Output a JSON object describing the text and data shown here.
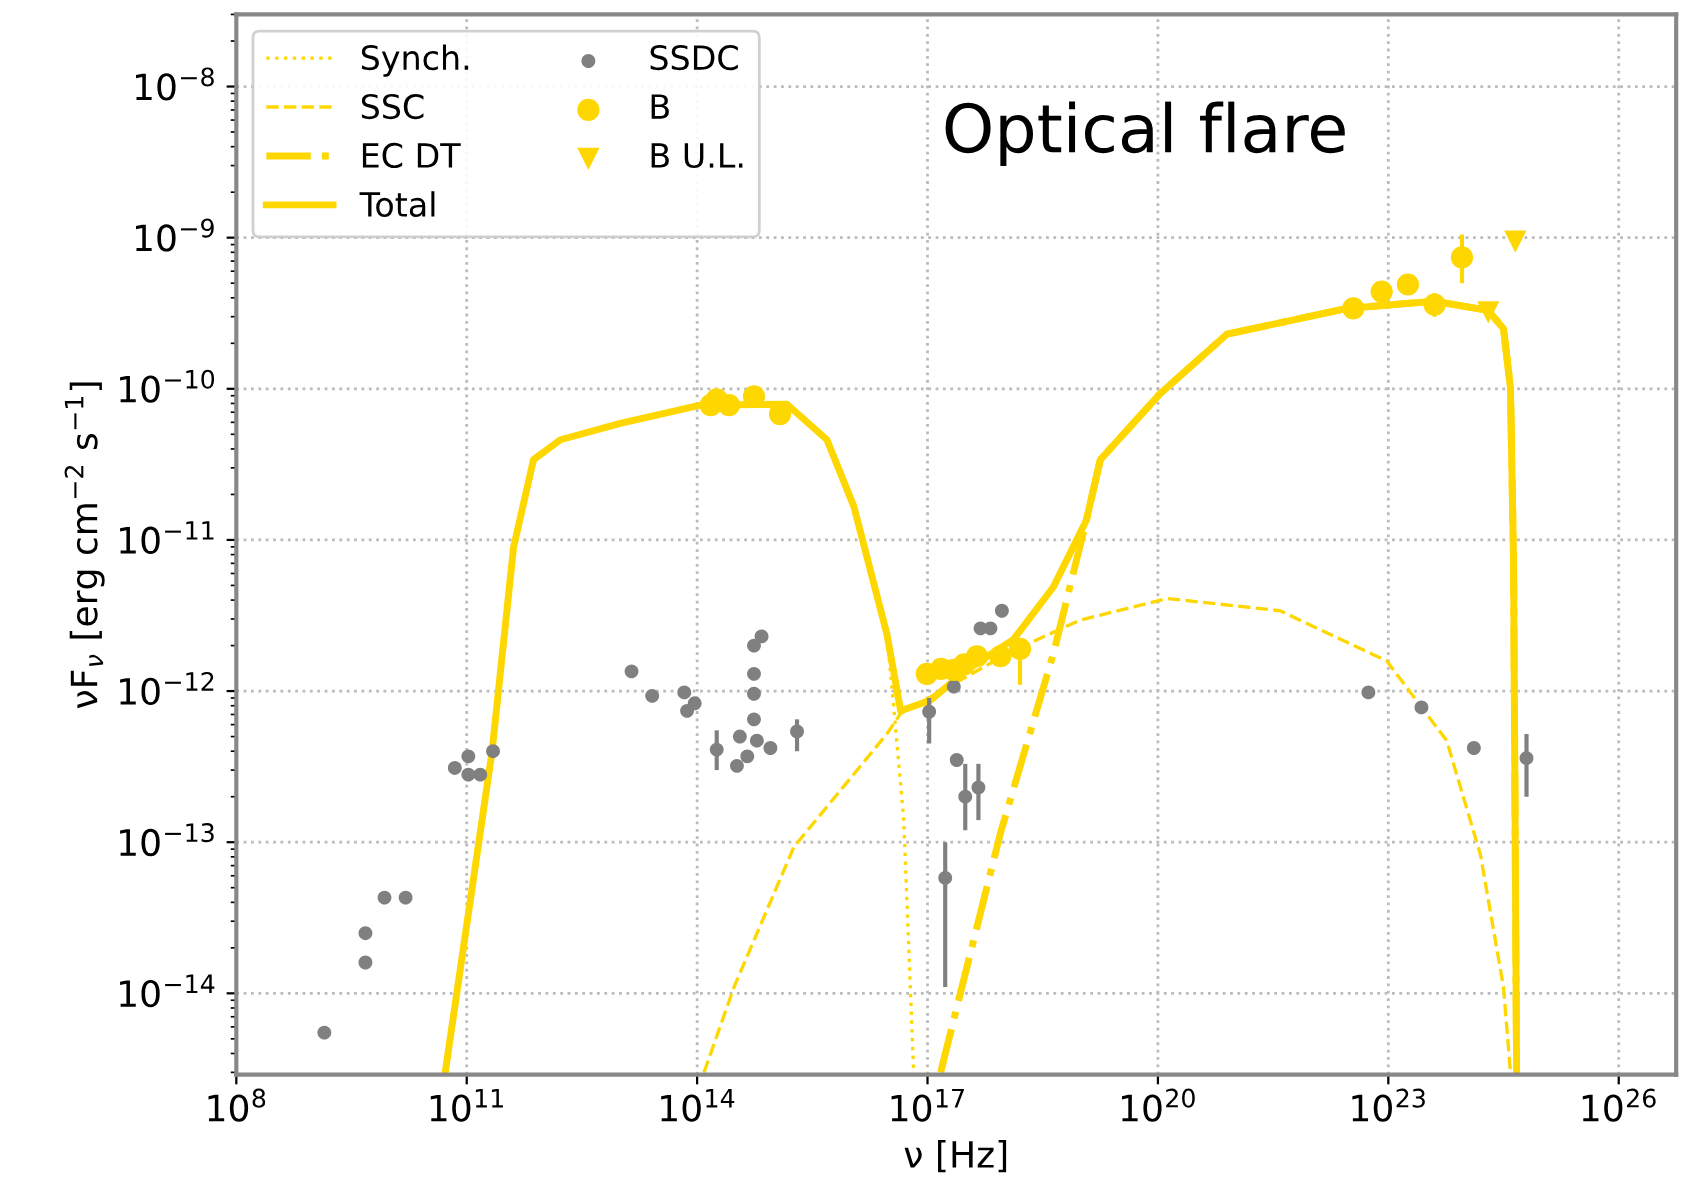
{
  "chart_data": {
    "type": "line",
    "title": null,
    "annotations": [
      "Optical flare"
    ],
    "xlabel": "ν [Hz]",
    "ylabel": "νF$_{ν}$ [erg cm$^{−2}$ s$^{−1}$]",
    "log": "xy",
    "grid": true,
    "legend": "top left",
    "xlim": [
      100000000.0,
      5.6e+26
    ],
    "ylim": [
      2.9e-15,
      3e-08
    ],
    "xticks": [
      {
        "value": 100000000.0,
        "label": "10$^{8}$"
      },
      {
        "value": 100000000000.0,
        "label": "10$^{11}$"
      },
      {
        "value": 100000000000000.0,
        "label": "10$^{14}$"
      },
      {
        "value": 1e+17,
        "label": "10$^{17}$"
      },
      {
        "value": 1e+20,
        "label": "10$^{20}$"
      },
      {
        "value": 1e+23,
        "label": "10$^{23}$"
      },
      {
        "value": 1e+26,
        "label": "10$^{26}$"
      }
    ],
    "yticks": [
      {
        "value": 1e-14,
        "label": "10$^{−14}$"
      },
      {
        "value": 1e-13,
        "label": "10$^{−13}$"
      },
      {
        "value": 1e-12,
        "label": "10$^{−12}$"
      },
      {
        "value": 1e-11,
        "label": "10$^{−11}$"
      },
      {
        "value": 1e-10,
        "label": "10$^{−10}$"
      },
      {
        "value": 1e-09,
        "label": "10$^{−9}$"
      },
      {
        "value": 1e-08,
        "label": "10$^{−8}$"
      }
    ],
    "series": [
      {
        "name": "Synch.",
        "line_style": "dotted",
        "color": "#ffd700",
        "x": [
          52500000000.0,
          214000000000.0,
          407000000000.0,
          741000000000.0,
          1660000000000.0,
          10000000000000.0,
          110000000000000.0,
          1480000000000000.0,
          4900000000000000.0,
          1.1e+16,
          2.95e+16,
          3.63e+16,
          4.9e+16,
          6.6e+16
        ],
        "values": [
          3e-15,
          4e-13,
          8.9e-12,
          3.4e-11,
          4.6e-11,
          5.9e-11,
          7.8e-11,
          7.9e-11,
          4.6e-11,
          1.66e-11,
          2.4e-12,
          7.9e-13,
          1.41e-13,
          3e-15
        ]
      },
      {
        "name": "SSC",
        "line_style": "dashed",
        "color": "#ffd700",
        "x": [
          123000000000000.0,
          302000000000000.0,
          1820000000000000.0,
          2.95e+16,
          4.47e+16,
          1.32e+18,
          9.77e+18,
          1.32e+20,
          3.89e+21,
          9.55e+22,
          5.75e+23,
          1.58e+24,
          3.16e+24,
          3.89e+24
        ],
        "values": [
          3e-15,
          1.1e-14,
          9.3e-14,
          5.2e-13,
          7.1e-13,
          1.86e-12,
          2.95e-12,
          4.1e-12,
          3.4e-12,
          1.58e-12,
          4.7e-13,
          8.3e-14,
          1.1e-14,
          3e-15
        ]
      },
      {
        "name": "EC DT",
        "line_style": "dashdot",
        "color": "#ffd700",
        "x": [
          1.48e+17,
          8.91e+17,
          4.37e+18,
          1.17e+19,
          1.78e+19,
          1.07e+20,
          7.94e+20,
          2.88e+22,
          3.89e+23,
          2e+24,
          3.16e+24,
          3.89e+24,
          4.27e+24,
          4.68e+24
        ],
        "values": [
          3e-15,
          1.15e-13,
          1.78e-12,
          1.35e-11,
          3.4e-11,
          9.3e-11,
          2.3e-10,
          3.4e-10,
          3.8e-10,
          3.3e-10,
          2.5e-10,
          1.02e-10,
          7.4e-12,
          3e-15
        ]
      },
      {
        "name": "Total",
        "line_style": "solid",
        "color": "#ffd700",
        "x": [
          52500000000.0,
          214000000000.0,
          407000000000.0,
          741000000000.0,
          1660000000000.0,
          10000000000000.0,
          110000000000000.0,
          1480000000000000.0,
          4900000000000000.0,
          1.1e+16,
          2.95e+16,
          4.47e+16,
          1.1e+17,
          3.24e+17,
          1.32e+18,
          4.37e+18,
          1.17e+19,
          1.78e+19,
          1.07e+20,
          7.94e+20,
          2.88e+22,
          3.89e+23,
          2e+24,
          3.16e+24,
          3.89e+24,
          4.27e+24,
          4.68e+24
        ],
        "values": [
          3e-15,
          4e-13,
          8.9e-12,
          3.4e-11,
          4.6e-11,
          5.9e-11,
          7.8e-11,
          7.9e-11,
          4.6e-11,
          1.66e-11,
          2.4e-12,
          7.4e-13,
          8.7e-13,
          1.38e-12,
          2.2e-12,
          4.9e-12,
          1.35e-11,
          3.4e-11,
          9.3e-11,
          2.3e-10,
          3.4e-10,
          3.8e-10,
          3.3e-10,
          2.5e-10,
          1.02e-10,
          7.4e-12,
          3e-15
        ]
      },
      {
        "name": "SSDC",
        "type": "scatter",
        "marker": "circle",
        "color": "#808080",
        "x": [
          1400000000.0,
          4800000000.0,
          4800000000.0,
          8500000000.0,
          16000000000.0,
          70000000000.0,
          105000000000.0,
          105000000000.0,
          150000000000.0,
          220000000000.0,
          14000000000000.0,
          26000000000000.0,
          68000000000000.0,
          74000000000000.0,
          93000000000000.0,
          180000000000000.0,
          330000000000000.0,
          360000000000000.0,
          450000000000000.0,
          550000000000000.0,
          550000000000000.0,
          550000000000000.0,
          550000000000000.0,
          690000000000000.0,
          600000000000000.0,
          900000000000000.0,
          2000000000000000.0,
          1.05e+17,
          1.7e+17,
          2.2e+17,
          2.4e+17,
          3.1e+17,
          4.6e+17,
          4.9e+17,
          6.6e+17,
          9.3e+17,
          5.5e+22,
          2.7e+23,
          1.3e+24,
          6.3e+24
        ],
        "values": [
          5.5e-15,
          2.5e-14,
          1.6e-14,
          4.3e-14,
          4.3e-14,
          3.1e-13,
          3.7e-13,
          2.8e-13,
          2.8e-13,
          4e-13,
          1.35e-12,
          9.3e-13,
          9.8e-13,
          7.4e-13,
          8.3e-13,
          4.1e-13,
          3.2e-13,
          5e-13,
          3.7e-13,
          6.5e-13,
          9.6e-13,
          1.3e-12,
          2e-12,
          2.3e-12,
          4.7e-13,
          4.2e-13,
          5.4e-13,
          7.3e-13,
          5.8e-14,
          1.07e-12,
          3.5e-13,
          2e-13,
          2.3e-13,
          2.6e-12,
          2.6e-12,
          3.4e-12,
          9.8e-13,
          7.8e-13,
          4.2e-13,
          3.6e-13
        ],
        "errors": [
          null,
          null,
          null,
          null,
          null,
          null,
          null,
          null,
          null,
          null,
          null,
          null,
          null,
          null,
          null,
          [
            3e-13,
            5.5e-13
          ],
          null,
          null,
          null,
          null,
          null,
          null,
          null,
          null,
          null,
          null,
          [
            4e-13,
            6.5e-13
          ],
          [
            4.5e-13,
            9e-13
          ],
          [
            1.1e-14,
            1e-13
          ],
          null,
          null,
          [
            1.2e-13,
            3.3e-13
          ],
          [
            1.4e-13,
            3.3e-13
          ],
          null,
          null,
          null,
          null,
          null,
          null,
          [
            2e-13,
            5.2e-13
          ]
        ]
      },
      {
        "name": "B",
        "type": "scatter",
        "marker": "circle",
        "color": "#ffd700",
        "x": [
          150000000000000.0,
          180000000000000.0,
          260000000000000.0,
          550000000000000.0,
          1200000000000000.0,
          9.8e+16,
          1.5e+17,
          2.2e+17,
          3e+17,
          4.4e+17,
          8.9e+17,
          1.6e+18,
          3.5e+22,
          8.2e+22,
          1.8e+23,
          4e+23,
          9.1e+23
        ],
        "values": [
          7.8e-11,
          8.5e-11,
          7.8e-11,
          8.9e-11,
          6.8e-11,
          1.3e-12,
          1.4e-12,
          1.38e-12,
          1.5e-12,
          1.7e-12,
          1.7e-12,
          1.9e-12,
          3.4e-10,
          4.4e-10,
          4.9e-10,
          3.6e-10,
          7.4e-10
        ],
        "errors": [
          null,
          null,
          null,
          null,
          null,
          null,
          null,
          null,
          null,
          null,
          null,
          [
            1.1e-12,
            2.2e-12
          ],
          null,
          null,
          null,
          [
            3e-10,
            4.3e-10
          ],
          [
            5e-10,
            1.05e-09
          ]
        ]
      },
      {
        "name": "B U.L.",
        "type": "scatter",
        "marker": "triangle",
        "color": "#ffd700",
        "x": [
          2e+24,
          4.5e+24
        ],
        "values": [
          3.2e-10,
          9.4e-10
        ]
      }
    ]
  }
}
